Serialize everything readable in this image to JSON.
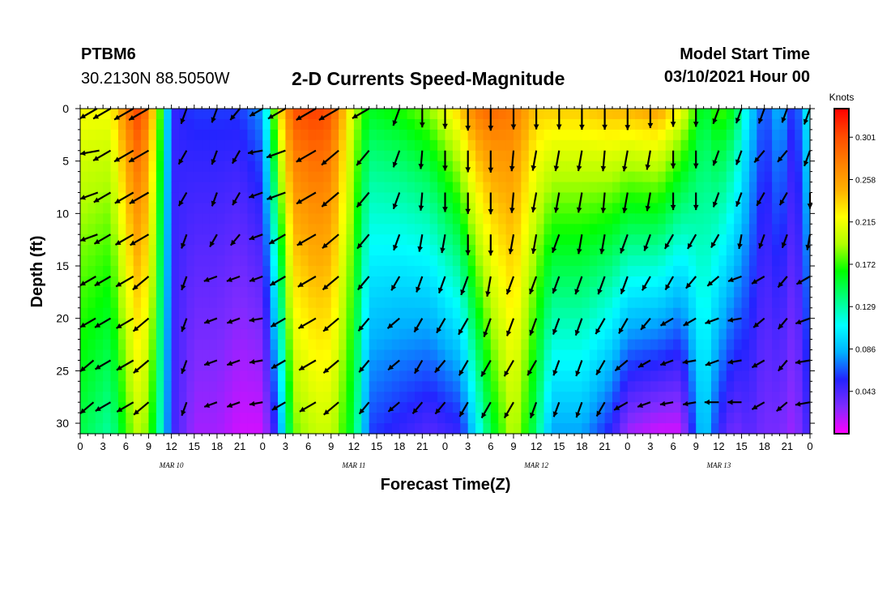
{
  "header": {
    "station": "PTBM6",
    "location": "30.2130N 88.5050W",
    "title": "2-D Currents Speed-Magnitude",
    "model_start_label": "Model Start Time",
    "model_start_value": "03/10/2021 Hour 00"
  },
  "colors": {
    "scale": [
      "#ff00ff",
      "#7f2bff",
      "#2424ff",
      "#00b0ff",
      "#00ffff",
      "#00ff7f",
      "#00ff00",
      "#b0ff00",
      "#ffff00",
      "#ffb000",
      "#ff7f00",
      "#ff4a00",
      "#ff0000"
    ],
    "arrow": "#000000",
    "frame": "#000000"
  },
  "chart_data": {
    "type": "heatmap",
    "title": "2-D Currents Speed-Magnitude",
    "xlabel": "Forecast Time(Z)",
    "ylabel": "Depth (ft)",
    "x_unit": "hours since 03/10/2021 00Z",
    "xlim": [
      0,
      96
    ],
    "ylim": [
      0,
      31
    ],
    "y_inverted": true,
    "x_ticks": [
      0,
      3,
      6,
      9,
      12,
      15,
      18,
      21,
      24,
      27,
      30,
      33,
      36,
      39,
      42,
      45,
      48,
      51,
      54,
      57,
      60,
      63,
      66,
      69,
      72,
      75,
      78,
      81,
      84,
      87,
      90,
      93,
      96
    ],
    "x_tick_labels": [
      "0",
      "3",
      "6",
      "9",
      "12",
      "15",
      "18",
      "21",
      "0",
      "3",
      "6",
      "9",
      "12",
      "15",
      "18",
      "21",
      "0",
      "3",
      "6",
      "9",
      "12",
      "15",
      "18",
      "21",
      "0",
      "3",
      "6",
      "9",
      "12",
      "15",
      "18",
      "21",
      "0"
    ],
    "date_labels": [
      {
        "hour": 12,
        "text": "MAR 10"
      },
      {
        "hour": 36,
        "text": "MAR 11"
      },
      {
        "hour": 60,
        "text": "MAR 12"
      },
      {
        "hour": 84,
        "text": "MAR 13"
      }
    ],
    "y_ticks": [
      0,
      5,
      10,
      15,
      20,
      25,
      30
    ],
    "y_tick_labels": [
      "0",
      "5",
      "10",
      "15",
      "20",
      "25",
      "30"
    ],
    "colorbar": {
      "label": "Knots",
      "min": 0.0,
      "max": 0.33,
      "ticks": [
        0.301,
        0.258,
        0.215,
        0.172,
        0.129,
        0.086,
        0.043
      ],
      "tick_labels": [
        "0.301",
        "0.258",
        "0.215",
        "0.172",
        "0.129",
        "0.086",
        "0.043"
      ]
    },
    "speed_profile_hours": [
      0,
      4,
      7,
      8,
      10,
      12,
      15,
      18,
      21,
      24,
      26,
      28,
      31,
      33,
      36,
      38,
      42,
      46,
      50,
      52,
      54,
      57,
      60,
      62,
      66,
      70,
      72,
      76,
      79,
      82,
      84,
      86,
      88,
      90,
      92,
      94,
      96
    ],
    "speed_profile_surface": [
      0.22,
      0.22,
      0.3,
      0.31,
      0.22,
      0.05,
      0.06,
      0.06,
      0.06,
      0.08,
      0.22,
      0.3,
      0.31,
      0.3,
      0.2,
      0.16,
      0.17,
      0.19,
      0.24,
      0.28,
      0.29,
      0.28,
      0.24,
      0.24,
      0.24,
      0.25,
      0.25,
      0.26,
      0.22,
      0.15,
      0.18,
      0.16,
      0.1,
      0.06,
      0.09,
      0.05,
      0.12
    ],
    "speed_profile_bottom": [
      0.15,
      0.13,
      0.19,
      0.2,
      0.15,
      0.05,
      0.02,
      0.02,
      0.01,
      0.01,
      0.06,
      0.18,
      0.2,
      0.2,
      0.15,
      0.06,
      0.05,
      0.04,
      0.05,
      0.1,
      0.15,
      0.2,
      0.14,
      0.08,
      0.08,
      0.05,
      0.02,
      0.01,
      0.01,
      0.1,
      0.05,
      0.03,
      0.04,
      0.03,
      0.03,
      0.02,
      0.05
    ],
    "vector_hours": [
      0,
      4,
      7,
      9,
      14,
      18,
      21,
      24,
      27,
      31,
      34,
      38,
      42,
      45,
      48,
      51,
      54,
      57,
      60,
      63,
      66,
      69,
      72,
      75,
      78,
      81,
      84,
      87,
      90,
      93,
      96
    ],
    "vector_depths": [
      0,
      4,
      8,
      12,
      16,
      20,
      24,
      28
    ],
    "vector_directions_deg": [
      [
        240,
        240,
        240,
        240,
        200,
        200,
        220,
        240,
        240,
        240,
        240,
        240,
        200,
        180,
        180,
        180,
        180,
        180,
        180,
        180,
        180,
        180,
        180,
        180,
        180,
        180,
        200,
        200,
        200,
        200,
        200
      ],
      [
        260,
        240,
        240,
        240,
        210,
        200,
        210,
        260,
        250,
        240,
        230,
        220,
        200,
        185,
        180,
        180,
        180,
        185,
        190,
        190,
        190,
        185,
        190,
        190,
        180,
        180,
        200,
        200,
        220,
        220,
        200
      ],
      [
        250,
        240,
        240,
        240,
        210,
        200,
        210,
        250,
        250,
        240,
        230,
        220,
        200,
        185,
        180,
        180,
        180,
        185,
        190,
        190,
        190,
        185,
        190,
        190,
        180,
        180,
        200,
        200,
        210,
        210,
        180
      ],
      [
        250,
        240,
        240,
        240,
        200,
        210,
        220,
        250,
        240,
        240,
        230,
        220,
        200,
        190,
        190,
        180,
        180,
        190,
        190,
        200,
        190,
        190,
        200,
        200,
        210,
        210,
        210,
        190,
        200,
        200,
        190
      ],
      [
        240,
        240,
        240,
        230,
        200,
        250,
        250,
        250,
        240,
        240,
        230,
        220,
        210,
        200,
        200,
        200,
        190,
        200,
        200,
        200,
        200,
        200,
        200,
        210,
        210,
        220,
        230,
        250,
        240,
        220,
        240
      ],
      [
        240,
        240,
        240,
        230,
        200,
        250,
        250,
        260,
        240,
        240,
        230,
        220,
        230,
        210,
        210,
        210,
        200,
        200,
        200,
        200,
        200,
        210,
        210,
        220,
        240,
        240,
        250,
        260,
        230,
        220,
        250
      ],
      [
        230,
        240,
        240,
        230,
        200,
        250,
        250,
        260,
        240,
        240,
        230,
        220,
        230,
        210,
        220,
        210,
        210,
        210,
        210,
        200,
        200,
        210,
        230,
        240,
        250,
        260,
        250,
        260,
        240,
        220,
        260
      ],
      [
        230,
        240,
        240,
        230,
        200,
        250,
        250,
        260,
        240,
        240,
        230,
        220,
        230,
        220,
        220,
        210,
        210,
        210,
        200,
        200,
        200,
        210,
        240,
        250,
        260,
        260,
        270,
        270,
        240,
        230,
        260
      ]
    ],
    "vector_speeds_knots": [
      [
        0.2,
        0.22,
        0.28,
        0.3,
        0.1,
        0.06,
        0.06,
        0.06,
        0.22,
        0.3,
        0.3,
        0.2,
        0.16,
        0.18,
        0.22,
        0.28,
        0.28,
        0.24,
        0.24,
        0.24,
        0.25,
        0.25,
        0.26,
        0.2,
        0.16,
        0.16,
        0.1,
        0.08,
        0.09,
        0.06,
        0.12
      ],
      [
        0.2,
        0.22,
        0.28,
        0.3,
        0.09,
        0.06,
        0.06,
        0.06,
        0.22,
        0.3,
        0.29,
        0.2,
        0.15,
        0.17,
        0.22,
        0.27,
        0.28,
        0.24,
        0.23,
        0.24,
        0.24,
        0.24,
        0.25,
        0.2,
        0.15,
        0.15,
        0.09,
        0.07,
        0.08,
        0.06,
        0.11
      ],
      [
        0.18,
        0.2,
        0.26,
        0.28,
        0.08,
        0.05,
        0.05,
        0.05,
        0.21,
        0.29,
        0.28,
        0.19,
        0.14,
        0.16,
        0.2,
        0.26,
        0.27,
        0.23,
        0.22,
        0.23,
        0.23,
        0.23,
        0.24,
        0.18,
        0.14,
        0.14,
        0.08,
        0.06,
        0.07,
        0.05,
        0.1
      ],
      [
        0.17,
        0.18,
        0.24,
        0.26,
        0.06,
        0.04,
        0.04,
        0.04,
        0.18,
        0.27,
        0.26,
        0.17,
        0.12,
        0.14,
        0.18,
        0.24,
        0.25,
        0.21,
        0.2,
        0.2,
        0.21,
        0.21,
        0.22,
        0.14,
        0.11,
        0.11,
        0.07,
        0.05,
        0.06,
        0.04,
        0.09
      ],
      [
        0.16,
        0.17,
        0.22,
        0.24,
        0.05,
        0.03,
        0.03,
        0.03,
        0.15,
        0.24,
        0.24,
        0.14,
        0.1,
        0.12,
        0.15,
        0.21,
        0.23,
        0.19,
        0.18,
        0.16,
        0.19,
        0.19,
        0.18,
        0.1,
        0.08,
        0.08,
        0.06,
        0.04,
        0.05,
        0.04,
        0.08
      ],
      [
        0.15,
        0.16,
        0.21,
        0.22,
        0.04,
        0.02,
        0.02,
        0.02,
        0.12,
        0.22,
        0.22,
        0.11,
        0.08,
        0.09,
        0.12,
        0.18,
        0.21,
        0.18,
        0.16,
        0.13,
        0.16,
        0.16,
        0.14,
        0.06,
        0.05,
        0.05,
        0.05,
        0.03,
        0.04,
        0.03,
        0.07
      ],
      [
        0.14,
        0.15,
        0.2,
        0.21,
        0.04,
        0.02,
        0.02,
        0.01,
        0.1,
        0.2,
        0.21,
        0.08,
        0.06,
        0.07,
        0.09,
        0.14,
        0.18,
        0.17,
        0.14,
        0.1,
        0.12,
        0.12,
        0.1,
        0.03,
        0.02,
        0.02,
        0.04,
        0.03,
        0.04,
        0.03,
        0.06
      ],
      [
        0.14,
        0.14,
        0.19,
        0.2,
        0.04,
        0.02,
        0.02,
        0.01,
        0.08,
        0.18,
        0.2,
        0.07,
        0.05,
        0.06,
        0.07,
        0.11,
        0.16,
        0.16,
        0.12,
        0.08,
        0.1,
        0.1,
        0.08,
        0.02,
        0.01,
        0.01,
        0.04,
        0.03,
        0.04,
        0.03,
        0.06
      ]
    ]
  }
}
